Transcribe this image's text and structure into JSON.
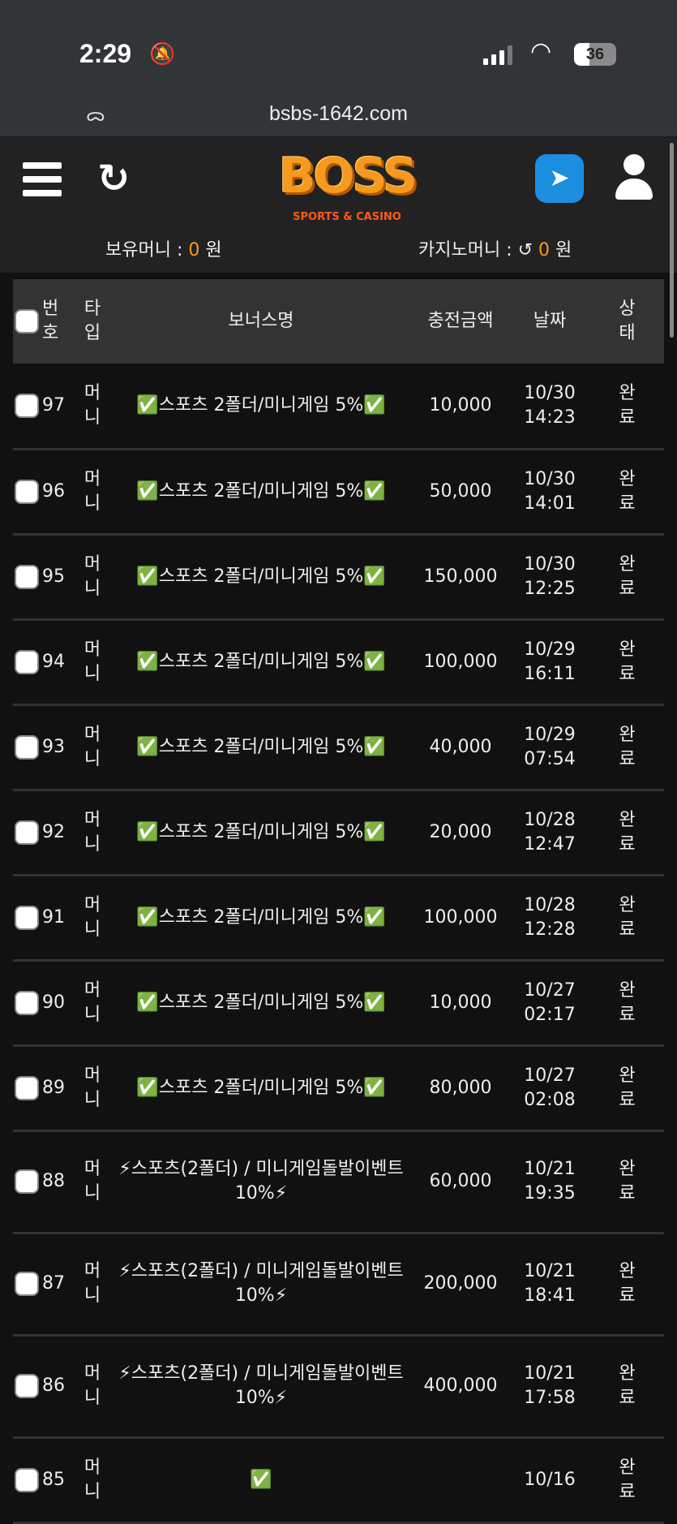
{
  "status_bar": {
    "time": "2:29",
    "battery": "36",
    "battery_percent": 36
  },
  "browser": {
    "url": "bsbs-1642.com"
  },
  "header": {
    "logo": "BOSS SPORTS & CASINO",
    "logo_main": "BOSS",
    "logo_sub": "SPORTS & CASINO",
    "money_label": "보유머니 :",
    "money_value": "0",
    "money_unit": "원",
    "casino_label": "카지노머니 :",
    "casino_value": "0",
    "casino_unit": "원"
  },
  "colors": {
    "accent": "#f59a1e",
    "telegram": "#1c8ee0"
  },
  "table": {
    "headers": {
      "no": "번호",
      "type": "타입",
      "name": "보너스명",
      "amount": "충전금액",
      "date": "날짜",
      "status": "상태"
    },
    "rows": [
      {
        "no": "97",
        "type": "머니",
        "name": "✅스포츠 2폴더/미니게임 5%✅",
        "amount": "10,000",
        "date": "10/30",
        "time": "14:23",
        "status": "완료"
      },
      {
        "no": "96",
        "type": "머니",
        "name": "✅스포츠 2폴더/미니게임 5%✅",
        "amount": "50,000",
        "date": "10/30",
        "time": "14:01",
        "status": "완료"
      },
      {
        "no": "95",
        "type": "머니",
        "name": "✅스포츠 2폴더/미니게임 5%✅",
        "amount": "150,000",
        "date": "10/30",
        "time": "12:25",
        "status": "완료"
      },
      {
        "no": "94",
        "type": "머니",
        "name": "✅스포츠 2폴더/미니게임 5%✅",
        "amount": "100,000",
        "date": "10/29",
        "time": "16:11",
        "status": "완료"
      },
      {
        "no": "93",
        "type": "머니",
        "name": "✅스포츠 2폴더/미니게임 5%✅",
        "amount": "40,000",
        "date": "10/29",
        "time": "07:54",
        "status": "완료"
      },
      {
        "no": "92",
        "type": "머니",
        "name": "✅스포츠 2폴더/미니게임 5%✅",
        "amount": "20,000",
        "date": "10/28",
        "time": "12:47",
        "status": "완료"
      },
      {
        "no": "91",
        "type": "머니",
        "name": "✅스포츠 2폴더/미니게임 5%✅",
        "amount": "100,000",
        "date": "10/28",
        "time": "12:28",
        "status": "완료"
      },
      {
        "no": "90",
        "type": "머니",
        "name": "✅스포츠 2폴더/미니게임 5%✅",
        "amount": "10,000",
        "date": "10/27",
        "time": "02:17",
        "status": "완료"
      },
      {
        "no": "89",
        "type": "머니",
        "name": "✅스포츠 2폴더/미니게임 5%✅",
        "amount": "80,000",
        "date": "10/27",
        "time": "02:08",
        "status": "완료"
      },
      {
        "no": "88",
        "type": "머니",
        "name": "⚡스포츠(2폴더) / 미니게임돌발이벤트 10%⚡",
        "amount": "60,000",
        "date": "10/21",
        "time": "19:35",
        "status": "완료"
      },
      {
        "no": "87",
        "type": "머니",
        "name": "⚡스포츠(2폴더) / 미니게임돌발이벤트 10%⚡",
        "amount": "200,000",
        "date": "10/21",
        "time": "18:41",
        "status": "완료"
      },
      {
        "no": "86",
        "type": "머니",
        "name": "⚡스포츠(2폴더) / 미니게임돌발이벤트 10%⚡",
        "amount": "400,000",
        "date": "10/21",
        "time": "17:58",
        "status": "완료"
      },
      {
        "no": "85",
        "type": "머니",
        "name": "✅",
        "amount": "",
        "date": "10/16",
        "time": "",
        "status": "완료"
      }
    ]
  }
}
